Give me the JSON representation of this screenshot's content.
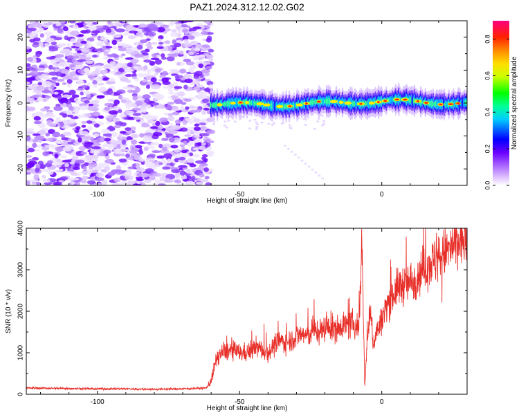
{
  "figure": {
    "title": "PAZ1.2024.312.12.02.G02"
  },
  "chart_data": [
    {
      "type": "heatmap",
      "title": "PAZ1.2024.312.12.02.G02",
      "xlabel": "Height of straight line (km)",
      "ylabel": "Frequency (Hz)",
      "xlim": [
        -125,
        30
      ],
      "ylim": [
        -25,
        25
      ],
      "x_ticks": [
        -100,
        -50,
        0
      ],
      "y_ticks": [
        -20,
        -10,
        0,
        10,
        20
      ],
      "signal_onset_km": -60,
      "signal_frequency_hz": 0,
      "colorbar": {
        "label": "Normalized spectral amplitude",
        "range": [
          0.0,
          0.9
        ],
        "ticks": [
          0.0,
          0.2,
          0.4,
          0.6,
          0.8
        ],
        "colors": [
          "#ffffff",
          "#cc99ff",
          "#7f00ff",
          "#0000ff",
          "#00ffff",
          "#00ff00",
          "#ffff00",
          "#ff7f00",
          "#ff0000",
          "#ff0080"
        ]
      },
      "grid": false
    },
    {
      "type": "line",
      "xlabel": "Height of straight line (km)",
      "ylabel": "SNR (10 * v/v)",
      "xlim": [
        -125,
        30
      ],
      "ylim": [
        0,
        4000
      ],
      "x_ticks": [
        -100,
        -50,
        0
      ],
      "y_ticks": [
        0,
        1000,
        2000,
        3000,
        4000
      ],
      "line_color": "#e8302a",
      "series": [
        {
          "x": [
            -125,
            -110,
            -100,
            -90,
            -80,
            -70,
            -62,
            -61,
            -60,
            -59,
            -58,
            -56,
            -54,
            -52,
            -50,
            -48,
            -46,
            -44,
            -42,
            -40,
            -38,
            -36,
            -34,
            -32,
            -30,
            -28,
            -26,
            -24,
            -22,
            -20,
            -18,
            -16,
            -14,
            -12,
            -10,
            -8,
            -7,
            -6,
            -5,
            -4,
            -3,
            -2,
            -1,
            0,
            2,
            4,
            6,
            8,
            10,
            12,
            14,
            16,
            18,
            20,
            22,
            24,
            26,
            28,
            30
          ],
          "y": [
            150,
            140,
            130,
            130,
            120,
            130,
            150,
            200,
            350,
            600,
            900,
            1000,
            1050,
            1050,
            1000,
            1000,
            1050,
            1150,
            1050,
            1000,
            1150,
            1300,
            1250,
            1300,
            1400,
            1450,
            1400,
            1550,
            1500,
            1600,
            1600,
            1550,
            1700,
            1650,
            1700,
            1600,
            3800,
            200,
            1400,
            2000,
            1200,
            1500,
            1600,
            1800,
            2200,
            2400,
            2600,
            2650,
            2700,
            2800,
            3000,
            3100,
            3200,
            3300,
            3400,
            3500,
            3600,
            3700,
            3700
          ]
        }
      ],
      "grid": false
    }
  ]
}
